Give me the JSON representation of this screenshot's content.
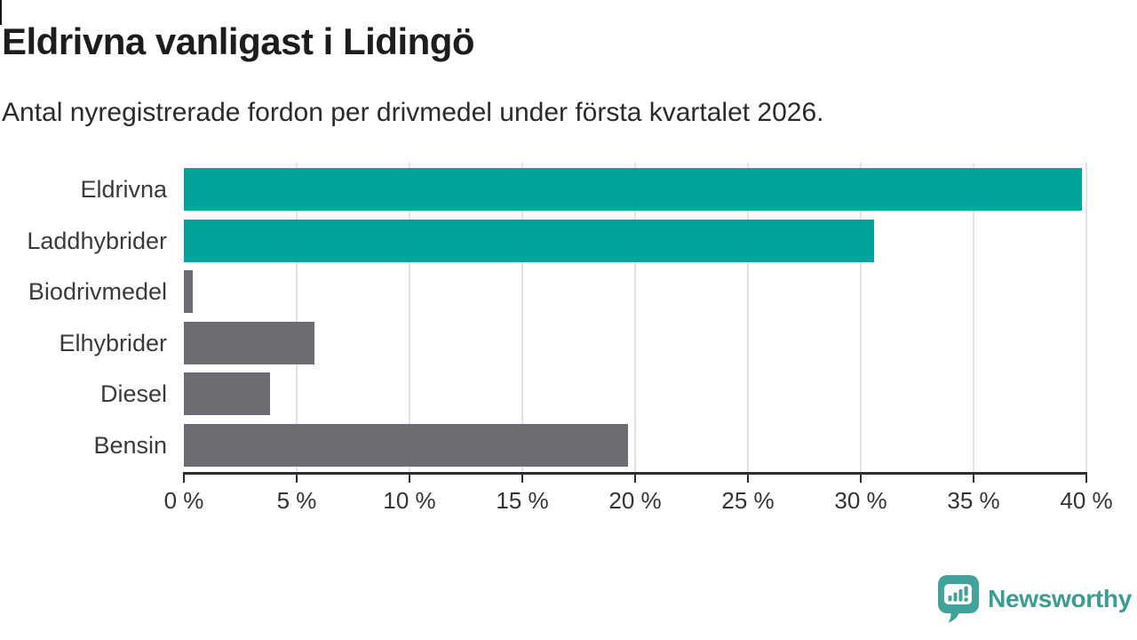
{
  "header": {
    "title": "Eldrivna vanligast i Lidingö",
    "subtitle": "Antal nyregistrerade fordon per drivmedel under första kvartalet 2026."
  },
  "chart_data": {
    "type": "bar",
    "orientation": "horizontal",
    "title": "Eldrivna vanligast i Lidingö",
    "subtitle": "Antal nyregistrerade fordon per drivmedel under första kvartalet 2026.",
    "categories": [
      "Eldrivna",
      "Laddhybrider",
      "Biodrivmedel",
      "Elhybrider",
      "Diesel",
      "Bensin"
    ],
    "values": [
      39.8,
      30.6,
      0.4,
      5.8,
      3.8,
      19.7
    ],
    "value_unit": "%",
    "bar_colors": [
      "#00a49b",
      "#00a49b",
      "#6c6c73",
      "#6c6c73",
      "#6c6c73",
      "#6c6c73"
    ],
    "xlabel": "",
    "ylabel": "",
    "xlim": [
      0,
      40
    ],
    "x_ticks": [
      0,
      5,
      10,
      15,
      20,
      25,
      30,
      35,
      40
    ],
    "x_tick_labels": [
      "0 %",
      "5 %",
      "10 %",
      "15 %",
      "20 %",
      "25 %",
      "30 %",
      "35 %",
      "40 %"
    ],
    "grid": "vertical-only",
    "legend": "none"
  },
  "colors": {
    "accent_teal": "#00a49b",
    "bar_gray": "#6c6c73",
    "gridline": "#e3e3e3",
    "axis": "#2e2e2e",
    "title_text": "#1d1d1d",
    "label_text": "#3a3a3a",
    "brand_teal": "#3b9c95"
  },
  "branding": {
    "logo_text": "Newsworthy",
    "logo_icon": "bar-chart-speech-bubble"
  }
}
